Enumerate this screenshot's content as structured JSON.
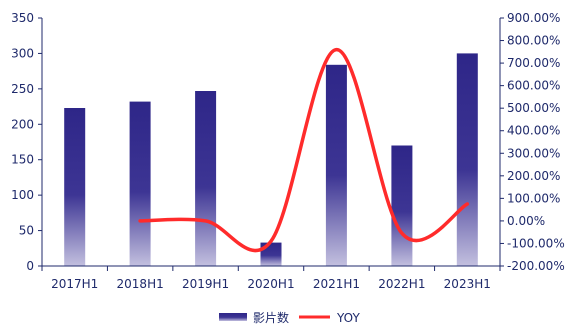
{
  "chart_data": {
    "type": "bar",
    "categories": [
      "2017H1",
      "2018H1",
      "2019H1",
      "2020H1",
      "2021H1",
      "2022H1",
      "2023H1"
    ],
    "series": [
      {
        "name": "影片数",
        "type": "bar",
        "axis": "left",
        "values": [
          223,
          232,
          247,
          33,
          284,
          170,
          300
        ]
      },
      {
        "name": "YOY",
        "type": "line",
        "axis": "right",
        "values": [
          null,
          0.0,
          0.0,
          -0.9,
          7.6,
          -0.55,
          0.75
        ]
      }
    ],
    "y_left": {
      "ylim": [
        0,
        350
      ],
      "ticks": [
        "0",
        "50",
        "100",
        "150",
        "200",
        "250",
        "300",
        "350"
      ]
    },
    "y_right": {
      "ylim": [
        -2.0,
        9.0
      ],
      "ticks": [
        "-200.00%",
        "-100.00%",
        "0.00%",
        "100.00%",
        "200.00%",
        "300.00%",
        "400.00%",
        "500.00%",
        "600.00%",
        "700.00%",
        "800.00%",
        "900.00%"
      ]
    },
    "grid": false,
    "legend_position": "bottom",
    "colors": {
      "bar_top": "#2e2688",
      "bar_bottom": "#b7b3d8",
      "line": "#ff2b2b",
      "axis": "#1f2a6b"
    },
    "title": "",
    "xlabel": "",
    "ylabel": ""
  }
}
